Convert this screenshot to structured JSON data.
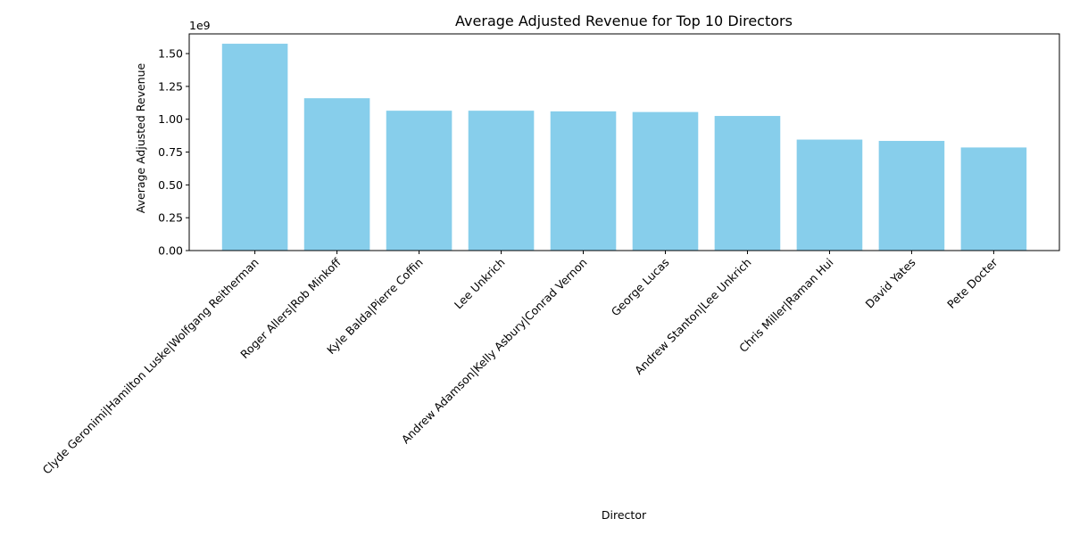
{
  "chart_data": {
    "type": "bar",
    "title": "Average Adjusted Revenue for Top 10 Directors",
    "xlabel": "Director",
    "ylabel": "Average Adjusted Revenue",
    "y_offset_label": "1e9",
    "ylim": [
      0,
      1.65
    ],
    "y_ticks": [
      0.0,
      0.25,
      0.5,
      0.75,
      1.0,
      1.25,
      1.5
    ],
    "y_tick_labels": [
      "0.00",
      "0.25",
      "0.50",
      "0.75",
      "1.00",
      "1.25",
      "1.50"
    ],
    "categories": [
      "Clyde Geronimi|Hamilton Luske|Wolfgang Reitherman",
      "Roger Allers|Rob Minkoff",
      "Kyle Balda|Pierre Coffin",
      "Lee Unkrich",
      "Andrew Adamson|Kelly Asbury|Conrad Vernon",
      "George Lucas",
      "Andrew Stanton|Lee Unkrich",
      "Chris Miller|Raman Hui",
      "David Yates",
      "Pete Docter"
    ],
    "values": [
      1.575,
      1.16,
      1.065,
      1.065,
      1.06,
      1.055,
      1.025,
      0.845,
      0.835,
      0.785
    ],
    "bar_color": "#87ceeb",
    "grid": false,
    "legend": "none"
  }
}
